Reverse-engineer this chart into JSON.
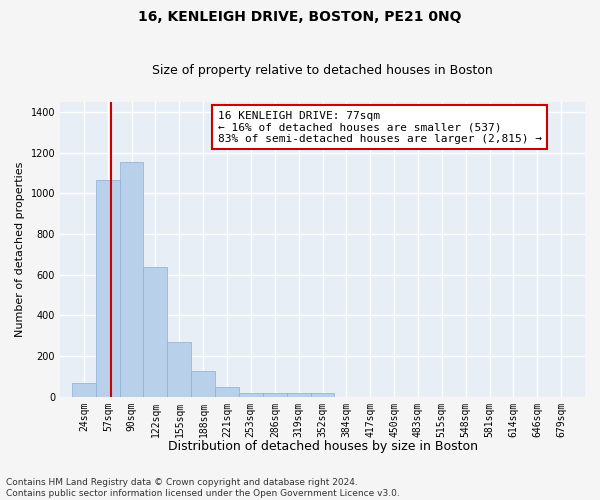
{
  "title": "16, KENLEIGH DRIVE, BOSTON, PE21 0NQ",
  "subtitle": "Size of property relative to detached houses in Boston",
  "xlabel": "Distribution of detached houses by size in Boston",
  "ylabel": "Number of detached properties",
  "annotation_line1": "16 KENLEIGH DRIVE: 77sqm",
  "annotation_line2": "← 16% of detached houses are smaller (537)",
  "annotation_line3": "83% of semi-detached houses are larger (2,815) →",
  "footer_line1": "Contains HM Land Registry data © Crown copyright and database right 2024.",
  "footer_line2": "Contains public sector information licensed under the Open Government Licence v3.0.",
  "bin_labels": [
    "24sqm",
    "57sqm",
    "90sqm",
    "122sqm",
    "155sqm",
    "188sqm",
    "221sqm",
    "253sqm",
    "286sqm",
    "319sqm",
    "352sqm",
    "384sqm",
    "417sqm",
    "450sqm",
    "483sqm",
    "515sqm",
    "548sqm",
    "581sqm",
    "614sqm",
    "646sqm",
    "679sqm"
  ],
  "bin_edges": [
    24,
    57,
    90,
    122,
    155,
    188,
    221,
    253,
    286,
    319,
    352,
    384,
    417,
    450,
    483,
    515,
    548,
    581,
    614,
    646,
    679,
    712
  ],
  "bar_heights": [
    65,
    1065,
    1155,
    635,
    270,
    125,
    47,
    20,
    20,
    20,
    17,
    0,
    0,
    0,
    0,
    0,
    0,
    0,
    0,
    0,
    0
  ],
  "bar_color": "#b8d0ea",
  "bar_edgecolor": "#8ab0d8",
  "vline_x": 77,
  "vline_color": "#cc0000",
  "annotation_box_edgecolor": "#cc0000",
  "annotation_box_facecolor": "#ffffff",
  "ylim": [
    0,
    1450
  ],
  "yticks": [
    0,
    200,
    400,
    600,
    800,
    1000,
    1200,
    1400
  ],
  "bg_color": "#e8eef6",
  "grid_color": "#ffffff",
  "fig_bg_color": "#f5f5f5",
  "title_fontsize": 10,
  "subtitle_fontsize": 9,
  "xlabel_fontsize": 9,
  "ylabel_fontsize": 8,
  "tick_fontsize": 7,
  "footer_fontsize": 6.5,
  "annotation_fontsize": 8
}
